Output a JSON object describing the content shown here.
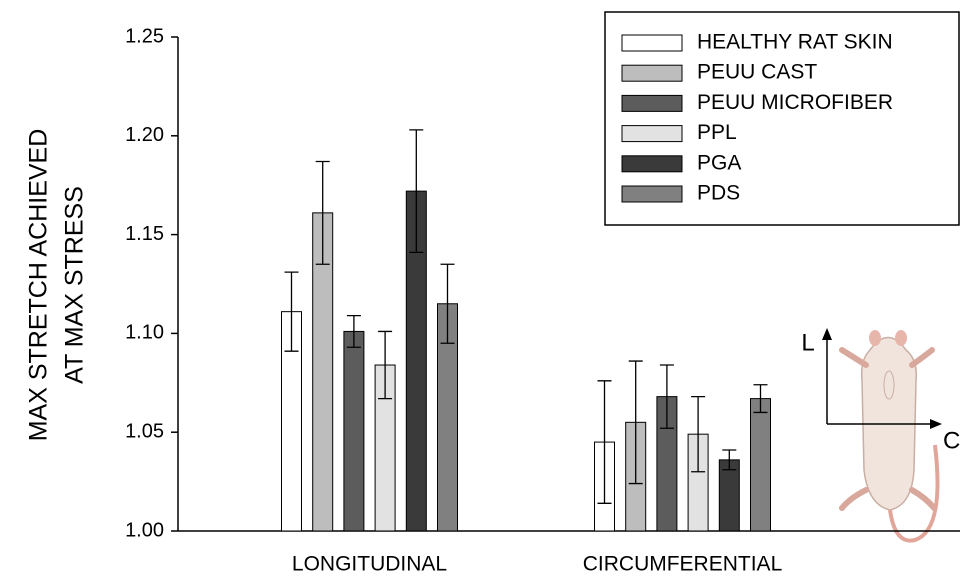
{
  "chart_data": {
    "type": "bar",
    "y_label": [
      "MAX STRETCH ACHIEVED",
      "AT MAX STRESS"
    ],
    "categories": [
      "LONGITUDINAL",
      "CIRCUMFERENTIAL"
    ],
    "series": [
      {
        "name": "HEALTHY RAT SKIN",
        "color": "#ffffff",
        "values": [
          1.111,
          1.045
        ],
        "errors": [
          0.02,
          0.031
        ]
      },
      {
        "name": "PEUU CAST",
        "color": "#bdbdbd",
        "values": [
          1.161,
          1.055
        ],
        "errors": [
          0.026,
          0.031
        ]
      },
      {
        "name": "PEUU MICROFIBER",
        "color": "#5c5c5c",
        "values": [
          1.101,
          1.068
        ],
        "errors": [
          0.008,
          0.016
        ]
      },
      {
        "name": "PPL",
        "color": "#e2e2e2",
        "values": [
          1.084,
          1.049
        ],
        "errors": [
          0.017,
          0.019
        ]
      },
      {
        "name": "PGA",
        "color": "#3a3a3a",
        "values": [
          1.172,
          1.036
        ],
        "errors": [
          0.031,
          0.005
        ]
      },
      {
        "name": "PDS",
        "color": "#808080",
        "values": [
          1.115,
          1.067
        ],
        "errors": [
          0.02,
          0.007
        ]
      }
    ],
    "ylim": [
      1.0,
      1.25
    ],
    "yticks": [
      {
        "value": 1.0,
        "label": "1.00"
      },
      1.05,
      {
        "value": 1.1,
        "label": "1.10"
      },
      1.15,
      {
        "value": 1.2,
        "label": "1.20"
      },
      1.25
    ],
    "legend": "top-right",
    "annotations": [
      "L",
      "C"
    ]
  }
}
